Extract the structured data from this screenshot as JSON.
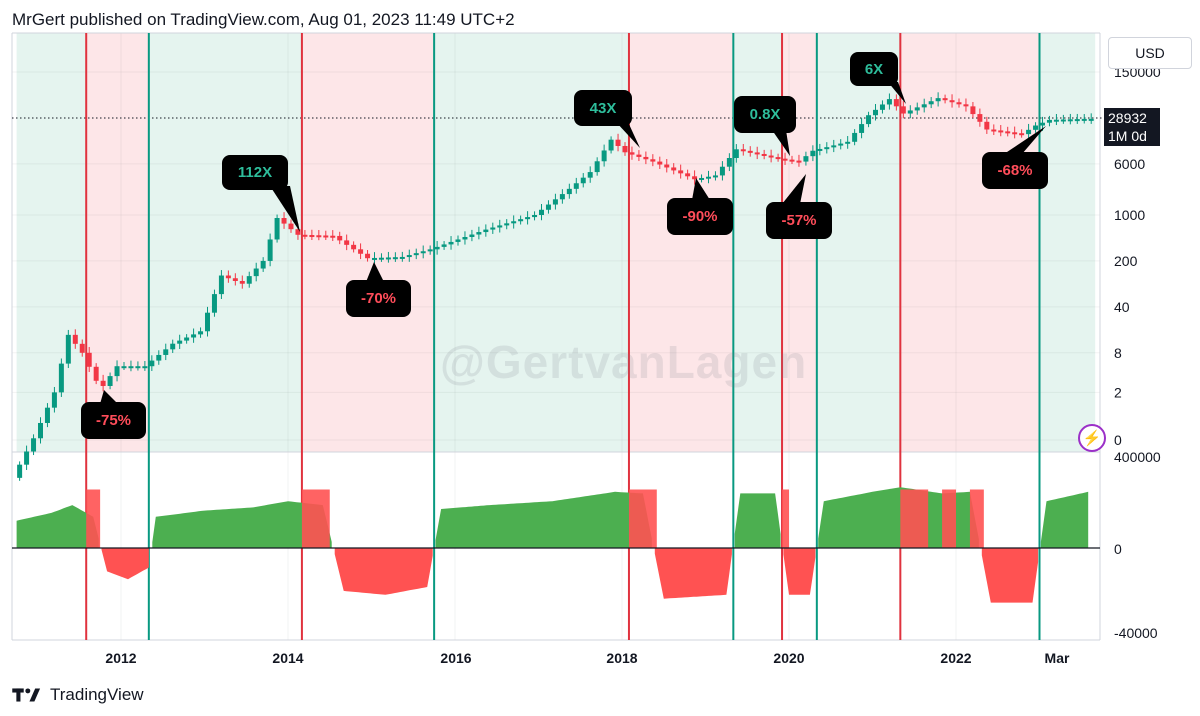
{
  "header": {
    "text": "MrGert published on TradingView.com, Aug 01, 2023 11:49 UTC+2"
  },
  "footer": {
    "brand": "TradingView"
  },
  "watermark": "@GertvanLagen",
  "currency": "USD",
  "price_tag": {
    "price": "28932",
    "interval": "1M 0d"
  },
  "colors": {
    "green_bg": "#e5f4ef",
    "red_bg": "#fde6e8",
    "green_line": "#089981",
    "red_line": "#e0323e",
    "candle_up": "#089981",
    "candle_down": "#f23645",
    "area_pos": "#4caf50",
    "area_neg": "#ff5252"
  },
  "chart_data": [
    {
      "type": "candlestick",
      "scale": "log",
      "yticks": [
        "150000",
        "6000",
        "1000",
        "200",
        "40",
        "8",
        "2",
        "0"
      ],
      "xticks": [
        "2012",
        "2014",
        "2016",
        "2018",
        "2020",
        "2022",
        "Mar"
      ],
      "current_price": 28932,
      "regions": [
        {
          "from": "2010-10",
          "to": "2011-08",
          "color": "green"
        },
        {
          "from": "2011-08",
          "to": "2012-05",
          "color": "red"
        },
        {
          "from": "2012-05",
          "to": "2014-03",
          "color": "green"
        },
        {
          "from": "2014-03",
          "to": "2015-10",
          "color": "red"
        },
        {
          "from": "2015-10",
          "to": "2018-02",
          "color": "green"
        },
        {
          "from": "2018-02",
          "to": "2019-05",
          "color": "red"
        },
        {
          "from": "2019-05",
          "to": "2019-12",
          "color": "green"
        },
        {
          "from": "2019-12",
          "to": "2020-05",
          "color": "red"
        },
        {
          "from": "2020-05",
          "to": "2021-05",
          "color": "green"
        },
        {
          "from": "2021-05",
          "to": "2023-01",
          "color": "red"
        },
        {
          "from": "2023-01",
          "to": "2023-09",
          "color": "green"
        }
      ],
      "vlines": [
        {
          "date": "2011-08",
          "color": "red"
        },
        {
          "date": "2012-05",
          "color": "green"
        },
        {
          "date": "2014-03",
          "color": "red"
        },
        {
          "date": "2015-10",
          "color": "green"
        },
        {
          "date": "2018-02",
          "color": "red"
        },
        {
          "date": "2019-05",
          "color": "green"
        },
        {
          "date": "2019-12",
          "color": "red"
        },
        {
          "date": "2020-05",
          "color": "green"
        },
        {
          "date": "2021-05",
          "color": "red"
        },
        {
          "date": "2023-01",
          "color": "green"
        }
      ],
      "annotations": [
        {
          "text": "112X",
          "kind": "peak"
        },
        {
          "text": "43X",
          "kind": "peak"
        },
        {
          "text": "0.8X",
          "kind": "peak"
        },
        {
          "text": "6X",
          "kind": "peak"
        },
        {
          "text": "-75%",
          "kind": "drawdown"
        },
        {
          "text": "-70%",
          "kind": "drawdown"
        },
        {
          "text": "-90%",
          "kind": "drawdown"
        },
        {
          "text": "-57%",
          "kind": "drawdown"
        },
        {
          "text": "-68%",
          "kind": "drawdown"
        }
      ],
      "price_path": [
        [
          "2010-10",
          0.1
        ],
        [
          "2011-01",
          0.4
        ],
        [
          "2011-04",
          2
        ],
        [
          "2011-06",
          15
        ],
        [
          "2011-08",
          8
        ],
        [
          "2011-10",
          3
        ],
        [
          "2011-11",
          2.5
        ],
        [
          "2012-01",
          5
        ],
        [
          "2012-05",
          5
        ],
        [
          "2012-09",
          11
        ],
        [
          "2013-01",
          17
        ],
        [
          "2013-04",
          120
        ],
        [
          "2013-07",
          90
        ],
        [
          "2013-10",
          200
        ],
        [
          "2013-12",
          900
        ],
        [
          "2014-03",
          500
        ],
        [
          "2014-08",
          480
        ],
        [
          "2015-01",
          220
        ],
        [
          "2015-06",
          230
        ],
        [
          "2015-10",
          300
        ],
        [
          "2016-06",
          600
        ],
        [
          "2017-01",
          1000
        ],
        [
          "2017-06",
          2500
        ],
        [
          "2017-09",
          4500
        ],
        [
          "2017-12",
          14000
        ],
        [
          "2018-02",
          9000
        ],
        [
          "2018-06",
          6500
        ],
        [
          "2018-12",
          3500
        ],
        [
          "2019-03",
          4000
        ],
        [
          "2019-06",
          10000
        ],
        [
          "2019-12",
          7200
        ],
        [
          "2020-03",
          6500
        ],
        [
          "2020-05",
          9500
        ],
        [
          "2020-10",
          13000
        ],
        [
          "2021-01",
          33000
        ],
        [
          "2021-04",
          58000
        ],
        [
          "2021-06",
          35000
        ],
        [
          "2021-11",
          60000
        ],
        [
          "2022-03",
          45000
        ],
        [
          "2022-06",
          20000
        ],
        [
          "2022-11",
          17000
        ],
        [
          "2023-01",
          23000
        ],
        [
          "2023-03",
          28000
        ],
        [
          "2023-08",
          29000
        ]
      ]
    },
    {
      "type": "area",
      "yticks": [
        "400000",
        "0",
        "-40000"
      ],
      "series": [
        {
          "values": [
            [
              "2010-10",
              0.35
            ],
            [
              "2011-03",
              0.45
            ],
            [
              "2011-06",
              0.55
            ],
            [
              "2011-09",
              0.4
            ],
            [
              "2011-11",
              -0.3
            ],
            [
              "2012-02",
              -0.4
            ],
            [
              "2012-05",
              -0.25
            ],
            [
              "2012-06",
              0.4
            ],
            [
              "2013-01",
              0.48
            ],
            [
              "2013-08",
              0.52
            ],
            [
              "2014-01",
              0.6
            ],
            [
              "2014-06",
              0.55
            ],
            [
              "2014-09",
              -0.55
            ],
            [
              "2015-03",
              -0.6
            ],
            [
              "2015-09",
              -0.5
            ],
            [
              "2015-11",
              0.5
            ],
            [
              "2016-06",
              0.55
            ],
            [
              "2017-03",
              0.6
            ],
            [
              "2017-12",
              0.72
            ],
            [
              "2018-04",
              0.7
            ],
            [
              "2018-07",
              -0.65
            ],
            [
              "2019-04",
              -0.6
            ],
            [
              "2019-06",
              0.7
            ],
            [
              "2019-11",
              0.7
            ],
            [
              "2020-01",
              -0.6
            ],
            [
              "2020-04",
              -0.6
            ],
            [
              "2020-06",
              0.6
            ],
            [
              "2021-01",
              0.72
            ],
            [
              "2021-05",
              0.78
            ],
            [
              "2021-11",
              0.7
            ],
            [
              "2022-03",
              0.72
            ],
            [
              "2022-06",
              -0.7
            ],
            [
              "2022-12",
              -0.7
            ],
            [
              "2023-02",
              0.6
            ],
            [
              "2023-08",
              0.72
            ]
          ]
        }
      ]
    }
  ]
}
